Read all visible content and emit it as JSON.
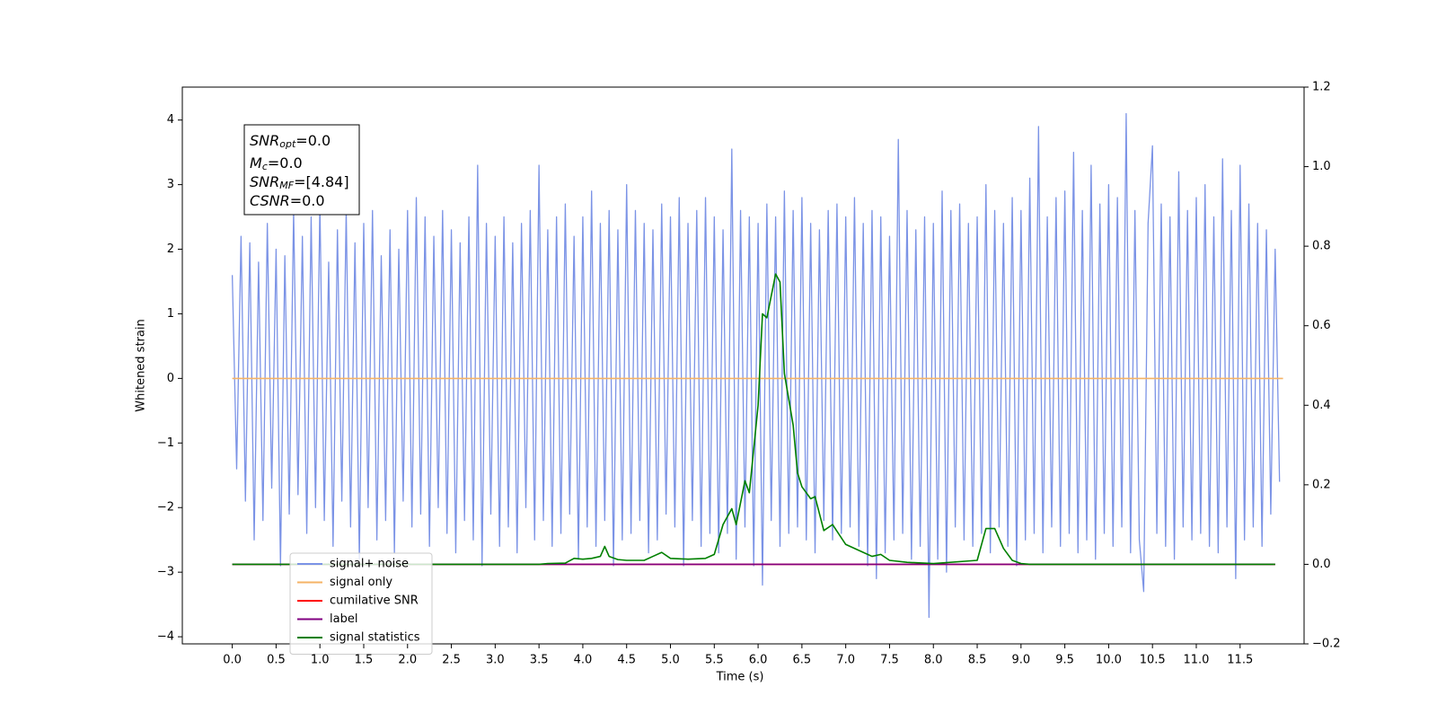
{
  "chart_data": {
    "type": "line",
    "xlabel": "Time (s)",
    "ylabel": "Whitened strain",
    "xlim": [
      -0.57,
      12.23
    ],
    "ylim": [
      -4.11,
      4.51
    ],
    "y2lim": [
      -0.2,
      1.2
    ],
    "xticks": [
      {
        "value": 0,
        "label": "0.0"
      },
      {
        "value": 0.5,
        "label": "0.5"
      },
      {
        "value": 1,
        "label": "1.0"
      },
      {
        "value": 1.5,
        "label": "1.5"
      },
      {
        "value": 2,
        "label": "2.0"
      },
      {
        "value": 2.5,
        "label": "2.5"
      },
      {
        "value": 3,
        "label": "3.0"
      },
      {
        "value": 3.5,
        "label": "3.5"
      },
      {
        "value": 4,
        "label": "4.0"
      },
      {
        "value": 4.5,
        "label": "4.5"
      },
      {
        "value": 5,
        "label": "5.0"
      },
      {
        "value": 5.5,
        "label": "5.5"
      },
      {
        "value": 6,
        "label": "6.0"
      },
      {
        "value": 6.5,
        "label": "6.5"
      },
      {
        "value": 7,
        "label": "7.0"
      },
      {
        "value": 7.5,
        "label": "7.5"
      },
      {
        "value": 8,
        "label": "8.0"
      },
      {
        "value": 8.5,
        "label": "8.5"
      },
      {
        "value": 9,
        "label": "9.0"
      },
      {
        "value": 9.5,
        "label": "9.5"
      },
      {
        "value": 10,
        "label": "10.0"
      },
      {
        "value": 10.5,
        "label": "10.5"
      },
      {
        "value": 11,
        "label": "11.0"
      },
      {
        "value": 11.5,
        "label": "11.5"
      }
    ],
    "yticks": [
      {
        "value": -4,
        "label": "−4"
      },
      {
        "value": -3,
        "label": "−3"
      },
      {
        "value": -2,
        "label": "−2"
      },
      {
        "value": -1,
        "label": "−1"
      },
      0,
      1,
      2,
      3,
      4
    ],
    "y2ticks": [
      {
        "value": -0.2,
        "label": "−0.2"
      },
      {
        "value": 0,
        "label": "0.0"
      },
      {
        "value": 0.2,
        "label": "0.2"
      },
      {
        "value": 0.4,
        "label": "0.4"
      },
      {
        "value": 0.6,
        "label": "0.6"
      },
      {
        "value": 0.8,
        "label": "0.8"
      },
      {
        "value": 1,
        "label": "1.0"
      },
      {
        "value": 1.2,
        "label": "1.2"
      }
    ],
    "legend": "lower left",
    "annotation": [
      {
        "symbol": "SNR",
        "sub": "opt",
        "text": "=0.0"
      },
      {
        "symbol": "M",
        "sub": "c",
        "text": "=0.0"
      },
      {
        "symbol": "SNR",
        "sub": "MF",
        "text": "=[4.84]"
      },
      {
        "symbol": "CSNR",
        "text": "=0.0"
      }
    ],
    "series": [
      {
        "name": "signal+ noise",
        "color": "#7b93e6",
        "x": [
          0,
          0.05,
          0.1,
          0.15,
          0.2,
          0.25,
          0.3,
          0.35,
          0.4,
          0.45,
          0.5,
          0.55,
          0.6,
          0.65,
          0.7,
          0.75,
          0.8,
          0.85,
          0.9,
          0.95,
          1,
          1.05,
          1.1,
          1.15,
          1.2,
          1.25,
          1.3,
          1.35,
          1.4,
          1.45,
          1.5,
          1.55,
          1.6,
          1.65,
          1.7,
          1.75,
          1.8,
          1.85,
          1.9,
          1.95,
          2,
          2.05,
          2.1,
          2.15,
          2.2,
          2.25,
          2.3,
          2.35,
          2.4,
          2.45,
          2.5,
          2.55,
          2.6,
          2.65,
          2.7,
          2.75,
          2.8,
          2.85,
          2.9,
          2.95,
          3,
          3.05,
          3.1,
          3.15,
          3.2,
          3.25,
          3.3,
          3.35,
          3.4,
          3.45,
          3.5,
          3.55,
          3.6,
          3.65,
          3.7,
          3.75,
          3.8,
          3.85,
          3.9,
          3.95,
          4,
          4.05,
          4.1,
          4.15,
          4.2,
          4.25,
          4.3,
          4.35,
          4.4,
          4.45,
          4.5,
          4.55,
          4.6,
          4.65,
          4.7,
          4.75,
          4.8,
          4.85,
          4.9,
          4.95,
          5,
          5.05,
          5.1,
          5.15,
          5.2,
          5.25,
          5.3,
          5.35,
          5.4,
          5.45,
          5.5,
          5.55,
          5.6,
          5.65,
          5.7,
          5.75,
          5.8,
          5.85,
          5.9,
          5.95,
          6,
          6.05,
          6.1,
          6.15,
          6.2,
          6.25,
          6.3,
          6.35,
          6.4,
          6.45,
          6.5,
          6.55,
          6.6,
          6.65,
          6.7,
          6.75,
          6.8,
          6.85,
          6.9,
          6.95,
          7,
          7.05,
          7.1,
          7.15,
          7.2,
          7.25,
          7.3,
          7.35,
          7.4,
          7.45,
          7.5,
          7.55,
          7.6,
          7.65,
          7.7,
          7.75,
          7.8,
          7.85,
          7.9,
          7.95,
          8,
          8.05,
          8.1,
          8.15,
          8.2,
          8.25,
          8.3,
          8.35,
          8.4,
          8.45,
          8.5,
          8.55,
          8.6,
          8.65,
          8.7,
          8.75,
          8.8,
          8.85,
          8.9,
          8.95,
          9,
          9.05,
          9.1,
          9.15,
          9.2,
          9.25,
          9.3,
          9.35,
          9.4,
          9.45,
          9.5,
          9.55,
          9.6,
          9.65,
          9.7,
          9.75,
          9.8,
          9.85,
          9.9,
          9.95,
          10,
          10.05,
          10.1,
          10.15,
          10.2,
          10.25,
          10.3,
          10.35,
          10.4,
          10.45,
          10.5,
          10.55,
          10.6,
          10.65,
          10.7,
          10.75,
          10.8,
          10.85,
          10.9,
          10.95,
          11,
          11.05,
          11.1,
          11.15,
          11.2,
          11.25,
          11.3,
          11.35,
          11.4,
          11.45,
          11.5,
          11.55,
          11.6,
          11.65,
          11.7,
          11.75,
          11.8,
          11.85,
          11.9,
          11.95
        ],
        "values": [
          1.6,
          -1.4,
          2.2,
          -1.9,
          2.1,
          -2.5,
          1.8,
          -2.2,
          2.4,
          -1.7,
          2.0,
          -2.9,
          1.9,
          -2.1,
          2.6,
          -1.8,
          2.2,
          -2.4,
          2.5,
          -2.0,
          2.7,
          -2.2,
          1.8,
          -2.6,
          2.3,
          -1.9,
          2.6,
          -2.3,
          2.1,
          -2.8,
          2.4,
          -2.0,
          2.6,
          -2.5,
          1.9,
          -2.2,
          2.3,
          -2.7,
          2.0,
          -1.9,
          2.6,
          -2.3,
          2.8,
          -2.1,
          2.5,
          -2.6,
          2.2,
          -2.0,
          2.6,
          -2.4,
          2.3,
          -2.7,
          2.1,
          -2.2,
          2.5,
          -2.5,
          3.3,
          -2.9,
          2.4,
          -2.1,
          2.2,
          -2.6,
          2.5,
          -2.3,
          2.1,
          -2.7,
          2.4,
          -2.0,
          2.6,
          -2.5,
          3.3,
          -2.2,
          2.3,
          -2.6,
          2.5,
          -2.4,
          2.7,
          -2.1,
          2.2,
          -2.8,
          2.5,
          -2.3,
          2.9,
          -2.6,
          2.4,
          -2.2,
          2.6,
          -2.9,
          2.3,
          -2.5,
          3.0,
          -2.4,
          2.6,
          -2.2,
          2.4,
          -2.7,
          2.3,
          -2.5,
          2.7,
          -2.1,
          2.5,
          -2.3,
          2.8,
          -2.9,
          2.4,
          -2.2,
          2.6,
          -2.6,
          2.8,
          -2.4,
          2.5,
          -2.7,
          2.3,
          -2.4,
          3.55,
          -2.8,
          2.6,
          -2.3,
          2.5,
          -2.9,
          2.4,
          -3.2,
          2.7,
          -2.2,
          2.5,
          -2.6,
          2.9,
          -2.4,
          2.6,
          -2.3,
          2.8,
          -2.5,
          2.4,
          -2.7,
          2.3,
          -2.2,
          2.6,
          -2.5,
          2.7,
          -2.4,
          2.5,
          -2.3,
          2.8,
          -2.6,
          2.4,
          -2.9,
          2.6,
          -3.1,
          2.5,
          -2.7,
          2.2,
          -2.5,
          3.7,
          -2.4,
          2.6,
          -2.8,
          2.3,
          -2.6,
          2.5,
          -3.7,
          2.4,
          -2.8,
          2.9,
          -3.0,
          2.6,
          -2.3,
          2.7,
          -2.5,
          2.4,
          -2.6,
          2.5,
          -2.4,
          3.0,
          -2.7,
          2.6,
          -2.3,
          2.4,
          -2.6,
          2.8,
          -2.9,
          2.6,
          -2.5,
          3.1,
          -2.4,
          3.9,
          -2.7,
          2.5,
          -2.3,
          2.8,
          -2.6,
          2.9,
          -2.4,
          3.5,
          -2.7,
          2.6,
          -2.5,
          3.3,
          -2.8,
          2.7,
          -2.4,
          3.0,
          -2.6,
          2.8,
          -2.3,
          4.1,
          -2.7,
          2.6,
          -2.5,
          -3.3,
          2.4,
          3.6,
          -2.4,
          2.7,
          -2.6,
          2.5,
          -2.8,
          3.2,
          -2.3,
          2.6,
          -2.5,
          2.8,
          -2.4,
          3.0,
          -2.6,
          2.5,
          -2.7,
          3.4,
          -2.3,
          2.6,
          -3.1,
          3.3,
          -2.5,
          2.7,
          -2.3,
          2.4,
          -2.6,
          2.3,
          -2.1,
          2.0,
          -1.6
        ]
      },
      {
        "name": "signal only",
        "color": "#f5b366",
        "x": [
          0,
          11.99
        ],
        "values": [
          0,
          0
        ]
      },
      {
        "name": "cumilative SNR",
        "color": "#ff0000",
        "axis": "y2",
        "x": [
          0,
          11.9
        ],
        "values": [
          0,
          0
        ]
      },
      {
        "name": "label",
        "color": "#800080",
        "axis": "y2",
        "x": [
          0,
          11.9
        ],
        "values": [
          0,
          0
        ]
      },
      {
        "name": "signal statistics",
        "color": "#008000",
        "axis": "y2",
        "x": [
          0,
          3.5,
          3.6,
          3.8,
          3.9,
          4.0,
          4.1,
          4.2,
          4.25,
          4.3,
          4.4,
          4.5,
          4.7,
          4.8,
          4.9,
          5.0,
          5.2,
          5.4,
          5.5,
          5.6,
          5.7,
          5.75,
          5.85,
          5.9,
          6.0,
          6.05,
          6.1,
          6.2,
          6.25,
          6.3,
          6.4,
          6.45,
          6.5,
          6.6,
          6.65,
          6.75,
          6.85,
          7.0,
          7.2,
          7.3,
          7.4,
          7.5,
          7.7,
          8.0,
          8.5,
          8.6,
          8.7,
          8.8,
          8.9,
          9.0,
          9.1,
          11.9
        ],
        "values": [
          0,
          0,
          0.002,
          0.003,
          0.015,
          0.013,
          0.015,
          0.02,
          0.045,
          0.02,
          0.012,
          0.01,
          0.01,
          0.02,
          0.03,
          0.015,
          0.013,
          0.015,
          0.025,
          0.1,
          0.14,
          0.1,
          0.21,
          0.18,
          0.4,
          0.63,
          0.62,
          0.73,
          0.71,
          0.48,
          0.35,
          0.23,
          0.195,
          0.165,
          0.17,
          0.085,
          0.1,
          0.05,
          0.03,
          0.02,
          0.025,
          0.01,
          0.005,
          0.002,
          0.01,
          0.09,
          0.09,
          0.04,
          0.01,
          0.002,
          0,
          0
        ]
      }
    ]
  }
}
